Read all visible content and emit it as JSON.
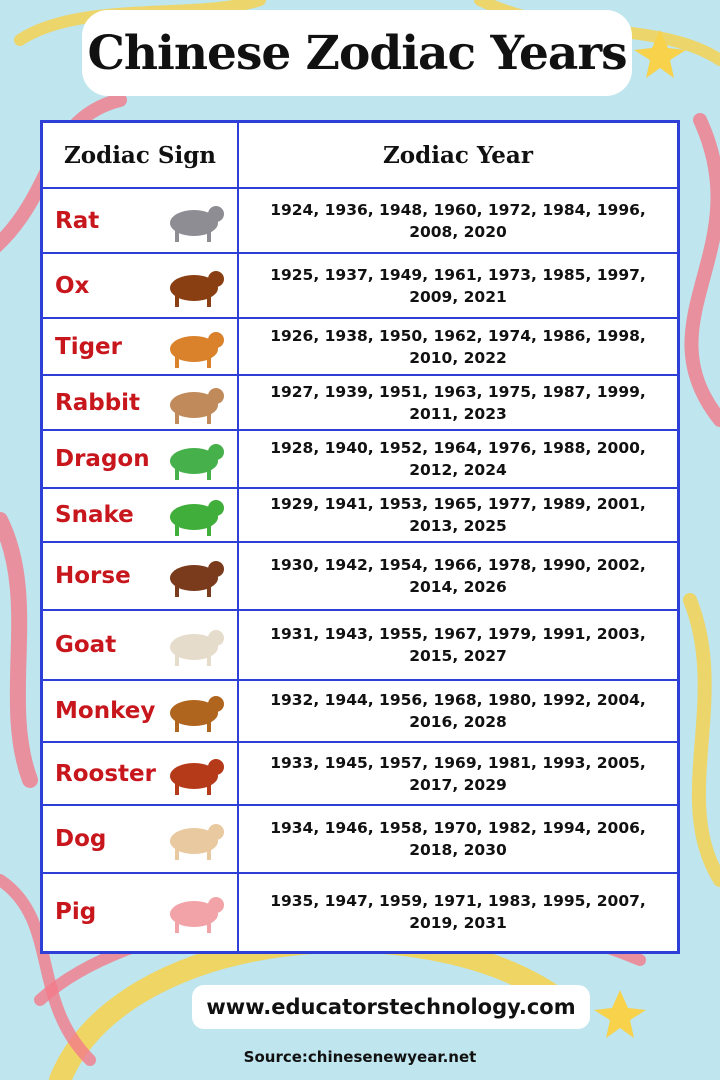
{
  "title": "Chinese Zodiac Years",
  "table": {
    "headers": [
      "Zodiac Sign",
      "Zodiac Year"
    ],
    "rows": [
      {
        "sign": "Rat",
        "icon": "rat-icon",
        "color": "#8d8d93",
        "years": "1924, 1936, 1948, 1960, 1972, 1984, 1996, 2008, 2020"
      },
      {
        "sign": "Ox",
        "icon": "ox-icon",
        "color": "#8a3f12",
        "years": "1925, 1937, 1949, 1961, 1973, 1985, 1997, 2009, 2021"
      },
      {
        "sign": "Tiger",
        "icon": "tiger-icon",
        "color": "#d9822b",
        "years": "1926, 1938, 1950, 1962, 1974, 1986, 1998, 2010, 2022"
      },
      {
        "sign": "Rabbit",
        "icon": "rabbit-icon",
        "color": "#c08a5a",
        "years": "1927, 1939, 1951, 1963, 1975, 1987, 1999, 2011, 2023"
      },
      {
        "sign": "Dragon",
        "icon": "dragon-icon",
        "color": "#46b04a",
        "years": "1928, 1940, 1952, 1964, 1976, 1988, 2000, 2012, 2024"
      },
      {
        "sign": "Snake",
        "icon": "snake-icon",
        "color": "#3fae3a",
        "years": "1929, 1941, 1953, 1965, 1977, 1989, 2001, 2013, 2025"
      },
      {
        "sign": "Horse",
        "icon": "horse-icon",
        "color": "#7a3a1c",
        "years": "1930, 1942, 1954, 1966, 1978, 1990, 2002, 2014, 2026"
      },
      {
        "sign": "Goat",
        "icon": "goat-icon",
        "color": "#e6dccb",
        "years": "1931, 1943, 1955, 1967, 1979, 1991, 2003, 2015, 2027"
      },
      {
        "sign": "Monkey",
        "icon": "monkey-icon",
        "color": "#b0651e",
        "years": "1932, 1944, 1956, 1968, 1980, 1992, 2004, 2016, 2028"
      },
      {
        "sign": "Rooster",
        "icon": "rooster-icon",
        "color": "#b53a1a",
        "years": "1933, 1945, 1957, 1969, 1981, 1993, 2005, 2017, 2029"
      },
      {
        "sign": "Dog",
        "icon": "dog-icon",
        "color": "#e8c9a0",
        "years": "1934, 1946, 1958, 1970, 1982, 1994, 2006, 2018, 2030"
      },
      {
        "sign": "Pig",
        "icon": "pig-icon",
        "color": "#f2a3a8",
        "years": "1935, 1947, 1959, 1971, 1983, 1995, 2007, 2019, 2031"
      }
    ]
  },
  "website": "www.educatorstechnology.com",
  "source": "Source:chinesenewyear.net",
  "colors": {
    "background": "#bfe5ee",
    "table_border": "#2d3fd6",
    "sign_text": "#c8161d",
    "neon_pink": "#f27a8a",
    "neon_yellow": "#f7d24a"
  }
}
